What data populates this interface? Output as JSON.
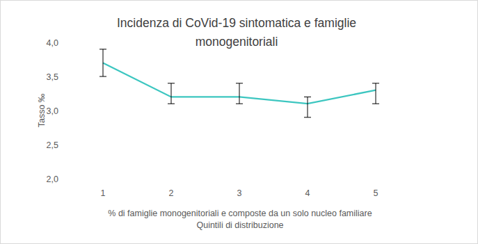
{
  "chart_data": {
    "type": "line",
    "title": "Incidenza di CoVid-19 sintomatica e famiglie monogenitoriali",
    "ylabel": "Tasso ‰",
    "xlabel": [
      "% di famiglie monogenitoriali e composte da un solo nucleo familiare",
      "Quintili di distribuzione"
    ],
    "categories": [
      "1",
      "2",
      "3",
      "4",
      "5"
    ],
    "series": [
      {
        "name": "Tasso",
        "color": "#3cc6c0",
        "marker": "none",
        "line_style": "solid",
        "values": [
          3.7,
          3.2,
          3.2,
          3.1,
          3.3
        ],
        "lower": [
          3.5,
          3.1,
          3.1,
          2.9,
          3.1
        ],
        "upper": [
          3.9,
          3.4,
          3.4,
          3.2,
          3.4
        ]
      }
    ],
    "ylim": [
      2,
      4
    ],
    "yticks": [
      {
        "value": 2,
        "label": "2,0"
      },
      {
        "value": 2.5,
        "label": "2,5"
      },
      {
        "value": 3,
        "label": "3,0"
      },
      {
        "value": 3.5,
        "label": "3,5"
      },
      {
        "value": 4,
        "label": "4,0"
      }
    ],
    "grid": false
  }
}
